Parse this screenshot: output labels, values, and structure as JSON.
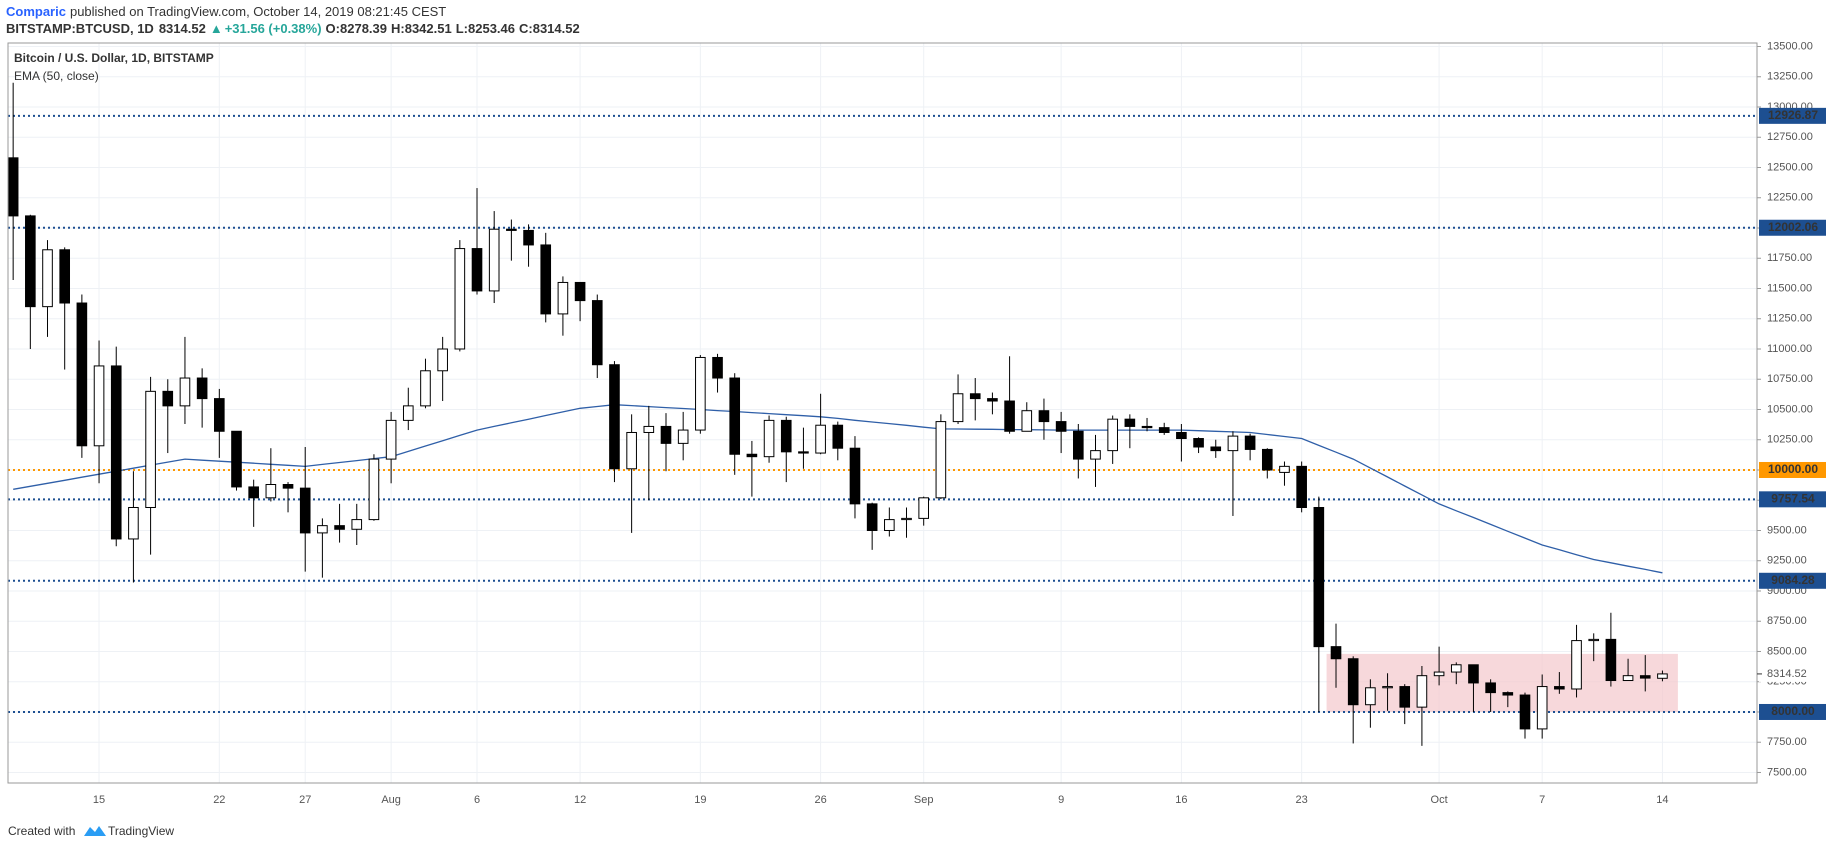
{
  "header": {
    "author": "Comparic",
    "published": "published on TradingView.com, October 14, 2019 08:21:45 CEST",
    "symbol": "BITSTAMP:BTCUSD, 1D",
    "arrow": "▲",
    "change": "+31.56 (+0.38%)",
    "ohlc_prefixes": [
      "O:",
      "H:",
      "L:",
      "C:"
    ]
  },
  "footer": {
    "created": "Created with",
    "brand": "TradingView"
  },
  "chart_data": {
    "type": "candlestick",
    "x": [
      "2019-07-10",
      "2019-07-11",
      "2019-07-12",
      "2019-07-13",
      "2019-07-14",
      "2019-07-15",
      "2019-07-16",
      "2019-07-17",
      "2019-07-18",
      "2019-07-19",
      "2019-07-20",
      "2019-07-21",
      "2019-07-22",
      "2019-07-23",
      "2019-07-24",
      "2019-07-25",
      "2019-07-26",
      "2019-07-27",
      "2019-07-28",
      "2019-07-29",
      "2019-07-30",
      "2019-07-31",
      "2019-08-01",
      "2019-08-02",
      "2019-08-03",
      "2019-08-04",
      "2019-08-05",
      "2019-08-06",
      "2019-08-07",
      "2019-08-08",
      "2019-08-09",
      "2019-08-10",
      "2019-08-11",
      "2019-08-12",
      "2019-08-13",
      "2019-08-14",
      "2019-08-15",
      "2019-08-16",
      "2019-08-17",
      "2019-08-18",
      "2019-08-19",
      "2019-08-20",
      "2019-08-21",
      "2019-08-22",
      "2019-08-23",
      "2019-08-24",
      "2019-08-25",
      "2019-08-26",
      "2019-08-27",
      "2019-08-28",
      "2019-08-29",
      "2019-08-30",
      "2019-08-31",
      "2019-09-01",
      "2019-09-02",
      "2019-09-03",
      "2019-09-04",
      "2019-09-05",
      "2019-09-06",
      "2019-09-07",
      "2019-09-08",
      "2019-09-09",
      "2019-09-10",
      "2019-09-11",
      "2019-09-12",
      "2019-09-13",
      "2019-09-14",
      "2019-09-15",
      "2019-09-16",
      "2019-09-17",
      "2019-09-18",
      "2019-09-19",
      "2019-09-20",
      "2019-09-21",
      "2019-09-22",
      "2019-09-23",
      "2019-09-24",
      "2019-09-25",
      "2019-09-26",
      "2019-09-27",
      "2019-09-28",
      "2019-09-29",
      "2019-09-30",
      "2019-10-01",
      "2019-10-02",
      "2019-10-03",
      "2019-10-04",
      "2019-10-05",
      "2019-10-06",
      "2019-10-07",
      "2019-10-08",
      "2019-10-09",
      "2019-10-10",
      "2019-10-11",
      "2019-10-12",
      "2019-10-13",
      "2019-10-14"
    ],
    "series": [
      {
        "name": "Bitcoin / U.S. Dollar, 1D, BITSTAMP",
        "up_color": "#ffffff",
        "down_color": "#000000",
        "open": [
          12580,
          12100,
          11350,
          11820,
          11380,
          10200,
          10860,
          9430,
          9690,
          10650,
          10530,
          10760,
          10590,
          10320,
          9860,
          9770,
          9880,
          9850,
          9480,
          9540,
          9510,
          9590,
          10090,
          10410,
          10530,
          10820,
          11000,
          11830,
          11480,
          11990,
          11980,
          11860,
          11290,
          11550,
          11400,
          10870,
          10010,
          10310,
          10360,
          10220,
          10330,
          10930,
          10760,
          10130,
          10110,
          10410,
          10150,
          10140,
          10370,
          10180,
          9720,
          9500,
          9590,
          9600,
          9770,
          10400,
          10630,
          10590,
          10570,
          10320,
          10490,
          10400,
          10320,
          10090,
          10160,
          10420,
          10360,
          10350,
          10310,
          10260,
          10190,
          10160,
          10280,
          10170,
          9980,
          10030,
          9690,
          8540,
          8440,
          8060,
          8200,
          8210,
          8040,
          8300,
          8330,
          8390,
          8240,
          8160,
          8140,
          7860,
          8210,
          8190,
          8590,
          8600,
          8260,
          8300,
          8278.39
        ],
        "high": [
          13200,
          12110,
          11900,
          11840,
          11450,
          11070,
          11020,
          9990,
          10770,
          10750,
          11100,
          10840,
          10670,
          10320,
          9920,
          10180,
          9900,
          10190,
          9600,
          9720,
          9720,
          10130,
          10480,
          10680,
          10920,
          11100,
          11900,
          12330,
          12140,
          12070,
          12030,
          11960,
          11600,
          11550,
          11450,
          10900,
          10460,
          10530,
          10470,
          10480,
          10950,
          10960,
          10800,
          10240,
          10450,
          10440,
          10350,
          10630,
          10400,
          10280,
          9730,
          9690,
          9690,
          9780,
          10460,
          10790,
          10760,
          10640,
          10940,
          10560,
          10590,
          10480,
          10380,
          10290,
          10450,
          10460,
          10430,
          10390,
          10380,
          10270,
          10250,
          10320,
          10300,
          10180,
          10070,
          10070,
          9780,
          8730,
          8460,
          8270,
          8320,
          8230,
          8380,
          8540,
          8410,
          8390,
          8270,
          8170,
          8160,
          8310,
          8330,
          8720,
          8650,
          8820,
          8440,
          8470,
          8342.51
        ],
        "low": [
          11570,
          11000,
          11100,
          10830,
          10100,
          9890,
          9370,
          9070,
          9300,
          10140,
          10380,
          10350,
          10100,
          9830,
          9530,
          9740,
          9650,
          9160,
          9110,
          9400,
          9380,
          9580,
          9890,
          10330,
          10510,
          10570,
          10980,
          11450,
          11380,
          11730,
          11680,
          11220,
          11110,
          11230,
          10760,
          9900,
          9480,
          9750,
          9990,
          10080,
          10300,
          10640,
          9960,
          9780,
          10060,
          9900,
          10010,
          10130,
          10080,
          9600,
          9340,
          9450,
          9440,
          9540,
          9760,
          10380,
          10410,
          10460,
          10300,
          10320,
          10250,
          10140,
          9930,
          9860,
          10050,
          10180,
          10320,
          10290,
          10070,
          10140,
          10100,
          9620,
          10080,
          9930,
          9870,
          9650,
          8000,
          8200,
          7740,
          7870,
          8010,
          7900,
          7720,
          8220,
          8230,
          8000,
          8000,
          8040,
          7780,
          7780,
          8150,
          8120,
          8420,
          8210,
          8260,
          8170,
          8253.46
        ],
        "close": [
          12100,
          11350,
          11820,
          11380,
          10200,
          10860,
          9430,
          9690,
          10650,
          10530,
          10760,
          10590,
          10320,
          9860,
          9770,
          9880,
          9850,
          9480,
          9540,
          9510,
          9590,
          10090,
          10410,
          10530,
          10820,
          11000,
          11830,
          11480,
          11990,
          11980,
          11860,
          11290,
          11550,
          11400,
          10870,
          10010,
          10310,
          10360,
          10220,
          10330,
          10930,
          10760,
          10130,
          10110,
          10410,
          10150,
          10140,
          10370,
          10180,
          9720,
          9500,
          9590,
          9600,
          9770,
          10400,
          10630,
          10590,
          10570,
          10320,
          10490,
          10400,
          10320,
          10090,
          10160,
          10420,
          10360,
          10350,
          10310,
          10260,
          10190,
          10160,
          10280,
          10170,
          10000,
          10030,
          9690,
          8540,
          8440,
          8060,
          8200,
          8210,
          8040,
          8300,
          8330,
          8390,
          8240,
          8160,
          8140,
          7860,
          8210,
          8190,
          8590,
          8600,
          8260,
          8300,
          8280,
          8314.52
        ]
      },
      {
        "name": "EMA (50, close)",
        "color": "#2f5fa8",
        "values": [
          9840,
          9865,
          9890,
          9915,
          9940,
          9965,
          9990,
          10015,
          10040,
          10065,
          10090,
          10081,
          10073,
          10064,
          10056,
          10047,
          10039,
          10030,
          10046,
          10062,
          10078,
          10094,
          10110,
          10154,
          10198,
          10242,
          10286,
          10330,
          10360,
          10390,
          10420,
          10450,
          10480,
          10510,
          10525,
          10540,
          10532,
          10524,
          10516,
          10508,
          10500,
          10491,
          10483,
          10474,
          10466,
          10457,
          10449,
          10440,
          10426,
          10411,
          10397,
          10383,
          10369,
          10354,
          10340,
          10339,
          10337,
          10336,
          10334,
          10333,
          10331,
          10330,
          10330,
          10330,
          10330,
          10330,
          10330,
          10330,
          10330,
          10325,
          10320,
          10315,
          10310,
          10293,
          10277,
          10260,
          10203,
          10147,
          10090,
          10016,
          9942,
          9868,
          9794,
          9720,
          9663,
          9607,
          9550,
          9493,
          9437,
          9380,
          9340,
          9300,
          9260,
          9233,
          9205,
          9178,
          9150
        ]
      }
    ],
    "ylim": [
      7413,
      13529
    ],
    "yticks": [
      {
        "value": 7500,
        "label": "7500.00"
      },
      {
        "value": 7750,
        "label": "7750.00"
      },
      {
        "value": 8000,
        "label": "8000.00"
      },
      {
        "value": 8250,
        "label": "8250.00"
      },
      {
        "value": 8500,
        "label": "8500.00"
      },
      {
        "value": 8750,
        "label": "8750.00"
      },
      {
        "value": 9000,
        "label": "9000.00"
      },
      {
        "value": 9250,
        "label": "9250.00"
      },
      {
        "value": 9500,
        "label": "9500.00"
      },
      {
        "value": 9750,
        "label": "9750.00"
      },
      {
        "value": 10000,
        "label": "10000.00"
      },
      {
        "value": 10250,
        "label": "10250.00"
      },
      {
        "value": 10500,
        "label": "10500.00"
      },
      {
        "value": 10750,
        "label": "10750.00"
      },
      {
        "value": 11000,
        "label": "11000.00"
      },
      {
        "value": 11250,
        "label": "11250.00"
      },
      {
        "value": 11500,
        "label": "11500.00"
      },
      {
        "value": 11750,
        "label": "11750.00"
      },
      {
        "value": 12000,
        "label": "12000.00"
      },
      {
        "value": 12250,
        "label": "12250.00"
      },
      {
        "value": 12500,
        "label": "12500.00"
      },
      {
        "value": 12750,
        "label": "12750.00"
      },
      {
        "value": 13000,
        "label": "13000.00"
      },
      {
        "value": 13250,
        "label": "13250.00"
      },
      {
        "value": 13500,
        "label": "13500.00"
      }
    ],
    "xticks": [
      {
        "value": "2019-07-15",
        "label": "15"
      },
      {
        "value": "2019-07-22",
        "label": "22"
      },
      {
        "value": "2019-07-27",
        "label": "27"
      },
      {
        "value": "2019-08-01",
        "label": "Aug"
      },
      {
        "value": "2019-08-06",
        "label": "6"
      },
      {
        "value": "2019-08-12",
        "label": "12"
      },
      {
        "value": "2019-08-19",
        "label": "19"
      },
      {
        "value": "2019-08-26",
        "label": "26"
      },
      {
        "value": "2019-09-01",
        "label": "Sep"
      },
      {
        "value": "2019-09-09",
        "label": "9"
      },
      {
        "value": "2019-09-16",
        "label": "16"
      },
      {
        "value": "2019-09-23",
        "label": "23"
      },
      {
        "value": "2019-10-01",
        "label": "Oct"
      },
      {
        "value": "2019-10-07",
        "label": "7"
      },
      {
        "value": "2019-10-14",
        "label": "14"
      }
    ],
    "grid": true,
    "levels": [
      {
        "value": 12926.87,
        "label": "12926.87",
        "color": "#1d4f91"
      },
      {
        "value": 12002.06,
        "label": "12002.06",
        "color": "#1d4f91"
      },
      {
        "value": 10000,
        "label": "10000.00",
        "color": "#ff9800"
      },
      {
        "value": 9757.54,
        "label": "9757.54",
        "color": "#1d4f91"
      },
      {
        "value": 9084.28,
        "label": "9084.28",
        "color": "#1d4f91"
      },
      {
        "value": 8000,
        "label": "8000.00",
        "color": "#1d4f91"
      }
    ],
    "zone": {
      "start": "2019-09-25",
      "end": "2019-10-14",
      "ylim": [
        8000,
        8480
      ],
      "color": "#f4c7cc"
    }
  }
}
